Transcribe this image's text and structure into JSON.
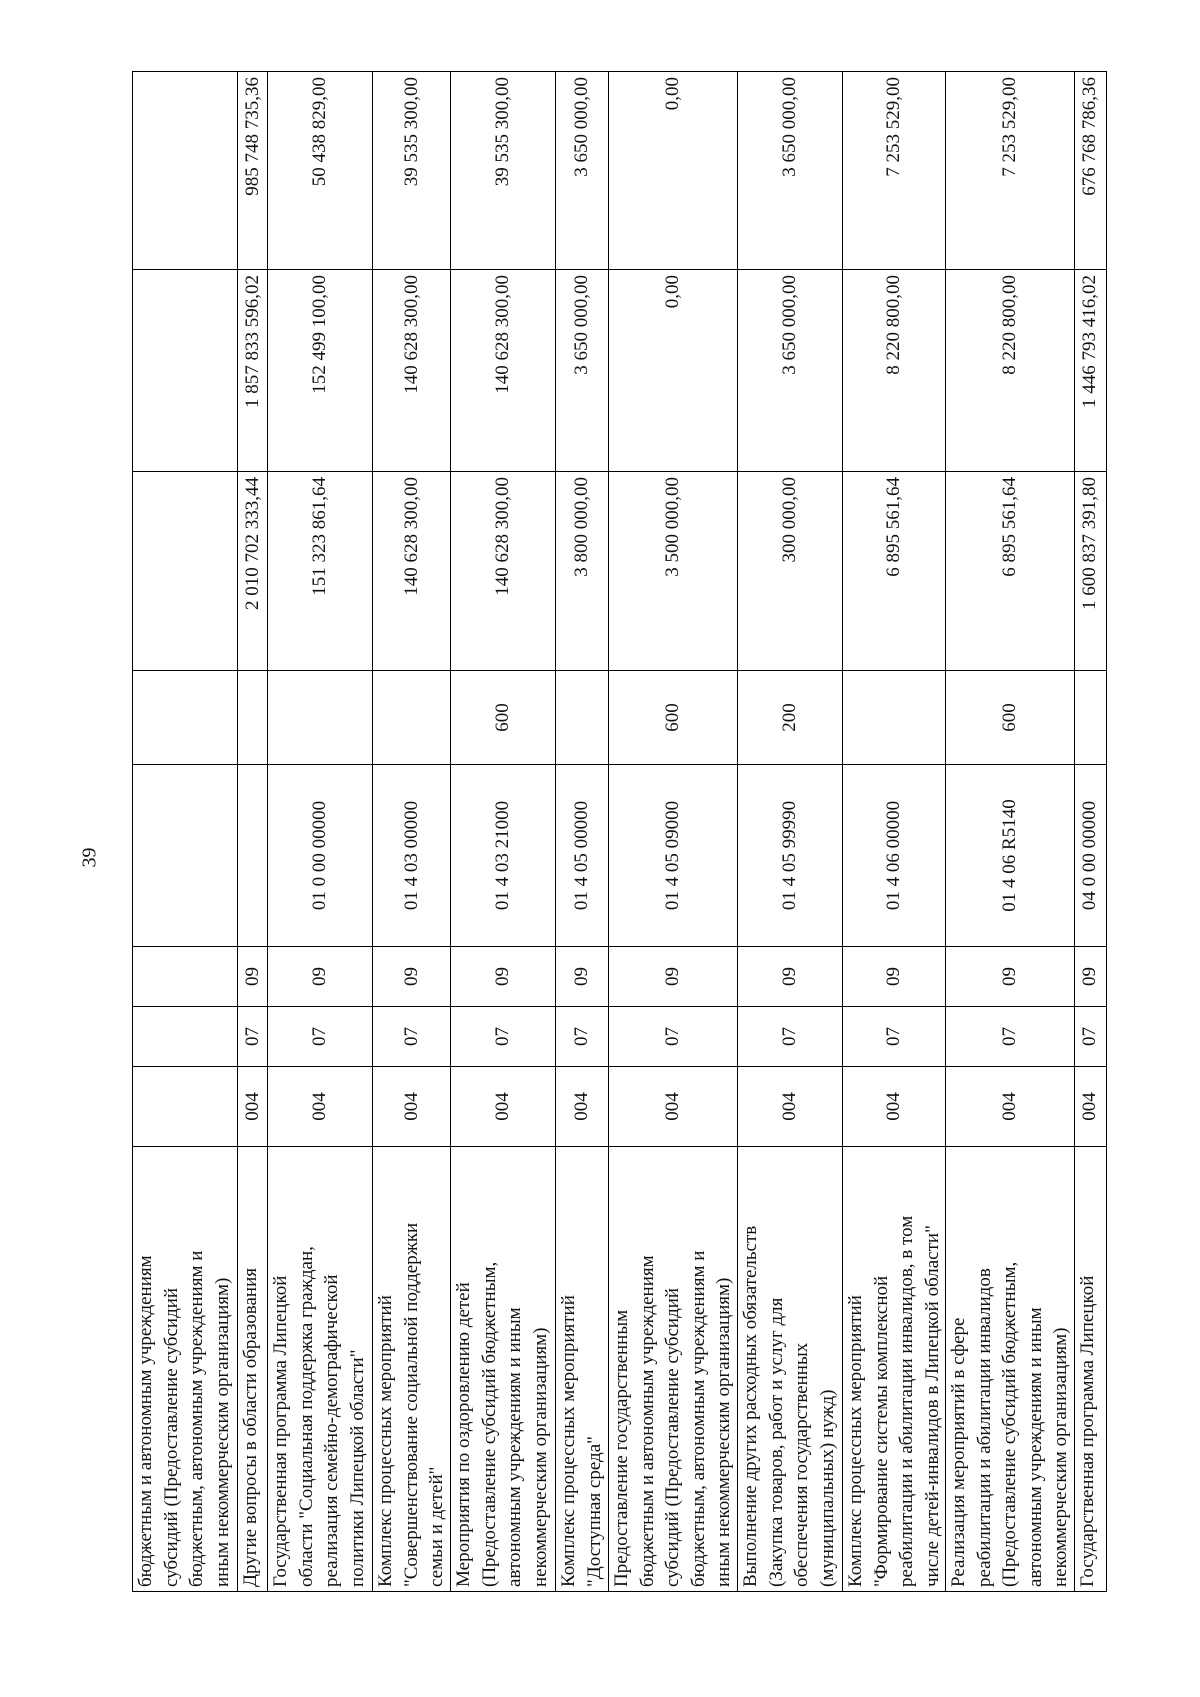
{
  "page_number": "39",
  "rows": [
    {
      "name": "бюджетным и автономным учреждениям\nсубсидий (Предоставление субсидий\nбюджетным, автономным учреждениям и\nиным некоммерческим организациям)",
      "ved": "",
      "rz": "",
      "pr": "",
      "csr": "",
      "vr": "",
      "sum1": "",
      "sum2": "",
      "sum3": ""
    },
    {
      "name": "Другие вопросы в области образования",
      "ved": "004",
      "rz": "07",
      "pr": "09",
      "csr": "",
      "vr": "",
      "sum1": "2 010 702 333,44",
      "sum2": "1 857 833 596,02",
      "sum3": "985 748 735,36"
    },
    {
      "name": "Государственная программа Липецкой\nобласти \"Социальная поддержка граждан,\nреализация семейно-демографической\nполитики Липецкой области\"",
      "ved": "004",
      "rz": "07",
      "pr": "09",
      "csr": "01 0 00 00000",
      "vr": "",
      "sum1": "151 323 861,64",
      "sum2": "152 499 100,00",
      "sum3": "50 438 829,00"
    },
    {
      "name": "Комплекс процессных мероприятий\n\"Совершенствование социальной поддержки\nсемьи и детей\"",
      "ved": "004",
      "rz": "07",
      "pr": "09",
      "csr": "01 4 03 00000",
      "vr": "",
      "sum1": "140 628 300,00",
      "sum2": "140 628 300,00",
      "sum3": "39 535 300,00"
    },
    {
      "name": "Мероприятия по оздоровлению детей\n(Предоставление субсидий бюджетным,\nавтономным учреждениям и иным\nнекоммерческим организациям)",
      "ved": "004",
      "rz": "07",
      "pr": "09",
      "csr": "01 4 03 21000",
      "vr": "600",
      "sum1": "140 628 300,00",
      "sum2": "140 628 300,00",
      "sum3": "39 535 300,00"
    },
    {
      "name": "Комплекс процессных мероприятий\n\"Доступная среда\"",
      "ved": "004",
      "rz": "07",
      "pr": "09",
      "csr": "01 4 05 00000",
      "vr": "",
      "sum1": "3 800 000,00",
      "sum2": "3 650 000,00",
      "sum3": "3 650 000,00"
    },
    {
      "name": "Предоставление государственным\nбюджетным и автономным учреждениям\nсубсидий (Предоставление субсидий\nбюджетным, автономным учреждениям и\nиным некоммерческим организациям)",
      "ved": "004",
      "rz": "07",
      "pr": "09",
      "csr": "01 4 05 09000",
      "vr": "600",
      "sum1": "3 500 000,00",
      "sum2": "0,00",
      "sum3": "0,00"
    },
    {
      "name": "Выполнение других расходных обязательств\n(Закупка товаров, работ и услуг для\nобеспечения государственных\n(муниципальных) нужд)",
      "ved": "004",
      "rz": "07",
      "pr": "09",
      "csr": "01 4 05 99990",
      "vr": "200",
      "sum1": "300 000,00",
      "sum2": "3 650 000,00",
      "sum3": "3 650 000,00"
    },
    {
      "name": "Комплекс процессных мероприятий\n\"Формирование системы комплексной\nреабилитации и абилитации инвалидов, в том\nчисле детей-инвалидов в Липецкой области\"",
      "ved": "004",
      "rz": "07",
      "pr": "09",
      "csr": "01 4 06 00000",
      "vr": "",
      "sum1": "6 895 561,64",
      "sum2": "8 220 800,00",
      "sum3": "7 253 529,00"
    },
    {
      "name": "Реализация мероприятий в сфере\nреабилитации и абилитации инвалидов\n(Предоставление субсидий бюджетным,\nавтономным учреждениям и иным\nнекоммерческим организациям)",
      "ved": "004",
      "rz": "07",
      "pr": "09",
      "csr": "01 4 06 R5140",
      "vr": "600",
      "sum1": "6 895 561,64",
      "sum2": "8 220 800,00",
      "sum3": "7 253 529,00"
    },
    {
      "name": "Государственная программа Липецкой",
      "ved": "004",
      "rz": "07",
      "pr": "09",
      "csr": "04 0 00 00000",
      "vr": "",
      "sum1": "1 600 837 391,80",
      "sum2": "1 446 793 416,02",
      "sum3": "676 768 786,36"
    }
  ]
}
